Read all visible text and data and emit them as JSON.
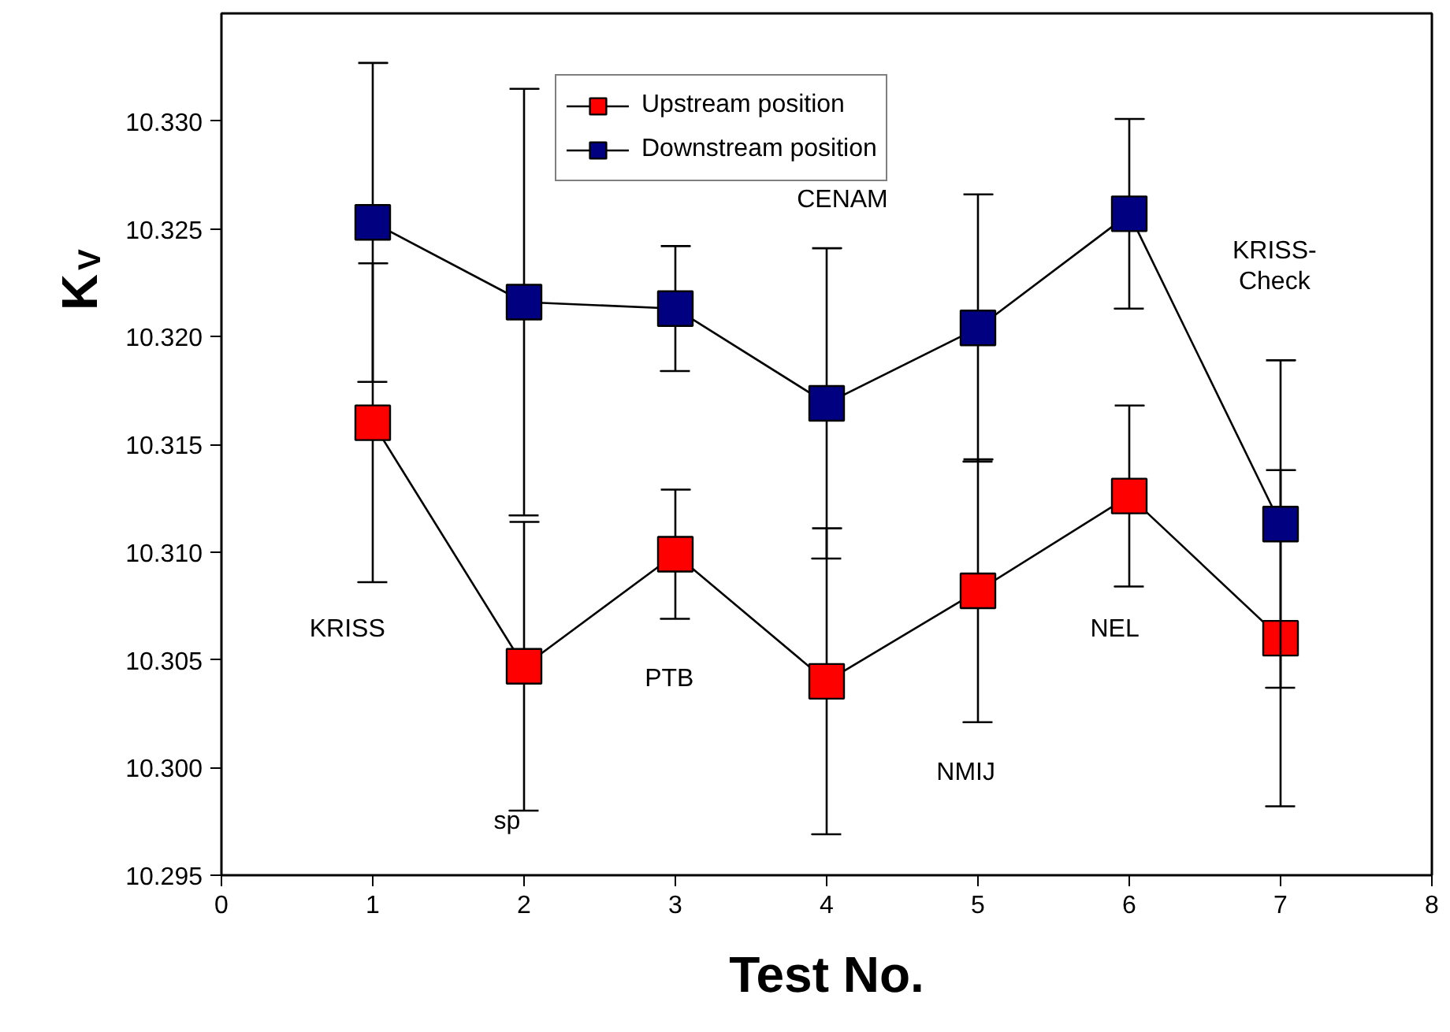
{
  "chart_data": {
    "type": "line",
    "xlabel": "Test No.",
    "ylabel": "K$_{V}$",
    "x": [
      1,
      2,
      3,
      4,
      5,
      6,
      7
    ],
    "series": [
      {
        "name": "Upstream position",
        "color": "#ff0000",
        "values": [
          10.316,
          10.3047,
          10.3099,
          10.304,
          10.3082,
          10.3126,
          10.306
        ],
        "errors": [
          0.0074,
          0.0067,
          0.003,
          0.0071,
          0.0061,
          0.0042,
          0.0078
        ]
      },
      {
        "name": "Downstream position",
        "color": "#000080",
        "values": [
          10.3253,
          10.3216,
          10.3213,
          10.3169,
          10.3204,
          10.3257,
          10.3113
        ],
        "errors": [
          0.0074,
          0.0099,
          0.0029,
          0.0072,
          0.0062,
          0.0044,
          0.0076
        ]
      }
    ],
    "annotations": [
      "KRISS",
      "sp",
      "PTB",
      "CENAM",
      "NMIJ",
      "NEL",
      "KRISS-\nCheck"
    ],
    "xlim": [
      0,
      8
    ],
    "ylim": [
      10.295,
      10.335
    ],
    "xticks": [
      0,
      1,
      2,
      3,
      4,
      5,
      6,
      7,
      8
    ],
    "yticks": [
      {
        "value": 10.295,
        "label": "10.295"
      },
      {
        "value": 10.3,
        "label": "10.300"
      },
      {
        "value": 10.305,
        "label": "10.305"
      },
      {
        "value": 10.31,
        "label": "10.310"
      },
      {
        "value": 10.315,
        "label": "10.315"
      },
      {
        "value": 10.32,
        "label": "10.320"
      },
      {
        "value": 10.325,
        "label": "10.325"
      },
      {
        "value": 10.33,
        "label": "10.330"
      }
    ],
    "marker": "square",
    "line_style": "solid",
    "legend": "top",
    "grid": false
  }
}
